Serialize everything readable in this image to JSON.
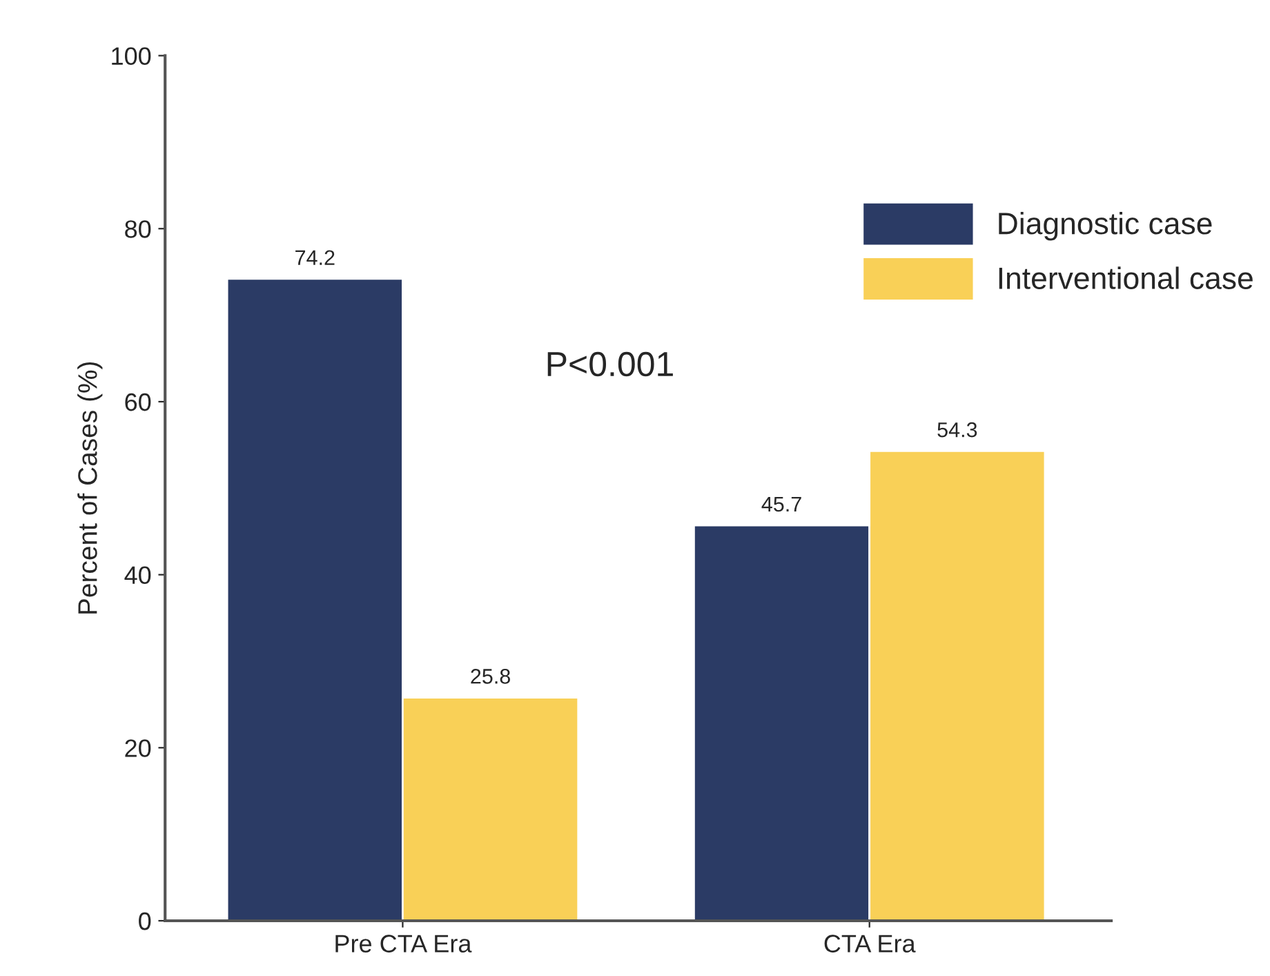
{
  "chart_data": {
    "type": "bar",
    "ylabel": "Percent of Cases (%)",
    "categories": [
      "Pre CTA Era",
      "CTA Era"
    ],
    "series": [
      {
        "name": "Diagnostic case",
        "color": "#2b3b65",
        "values": [
          74.2,
          45.7
        ]
      },
      {
        "name": "Interventional case",
        "color": "#f9d057",
        "values": [
          25.8,
          54.3
        ]
      }
    ],
    "ylim": [
      0,
      100
    ],
    "yticks": [
      0,
      20,
      40,
      60,
      80,
      100
    ],
    "data_labels": true,
    "legend": "top right",
    "grid": false,
    "annotations": [
      "P<0.001"
    ]
  }
}
